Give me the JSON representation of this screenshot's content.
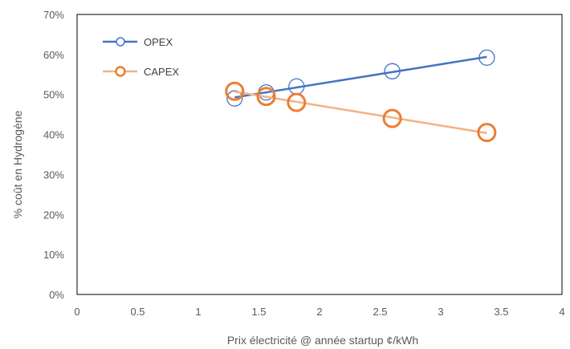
{
  "chart_data": {
    "type": "scatter",
    "xlabel": "Prix électricité @ année startup ¢/kWh",
    "ylabel": "% coût en Hydrogène",
    "xlim": [
      0,
      4
    ],
    "ylim": [
      0,
      0.7
    ],
    "x_ticks": [
      0,
      0.5,
      1,
      1.5,
      2,
      2.5,
      3,
      3.5,
      4
    ],
    "x_tick_labels": [
      "0",
      "0.5",
      "1",
      "1.5",
      "2",
      "2.5",
      "3",
      "3.5",
      "4"
    ],
    "y_ticks": [
      0,
      0.1,
      0.2,
      0.3,
      0.4,
      0.5,
      0.6,
      0.7
    ],
    "y_tick_labels": [
      "0%",
      "10%",
      "20%",
      "30%",
      "40%",
      "50%",
      "60%",
      "70%"
    ],
    "grid": false,
    "legend_position": "top-left",
    "series": [
      {
        "name": "OPEX",
        "color": "#4472C4",
        "marker": "open-circle",
        "trendline": true,
        "x": [
          1.3,
          1.56,
          1.81,
          2.6,
          3.38
        ],
        "y": [
          0.49,
          0.505,
          0.52,
          0.558,
          0.592
        ]
      },
      {
        "name": "CAPEX",
        "color": "#ED7D31",
        "trendline_color": "#F4B183",
        "marker": "open-circle",
        "trendline": true,
        "x": [
          1.3,
          1.56,
          1.81,
          2.6,
          3.38
        ],
        "y": [
          0.508,
          0.495,
          0.48,
          0.44,
          0.405
        ]
      }
    ]
  }
}
